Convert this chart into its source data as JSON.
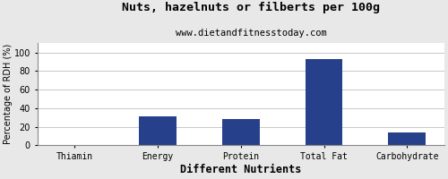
{
  "title": "Nuts, hazelnuts or filberts per 100g",
  "subtitle": "www.dietandfitnesstoday.com",
  "xlabel": "Different Nutrients",
  "ylabel": "Percentage of RDH (%)",
  "categories": [
    "Thiamin",
    "Energy",
    "Protein",
    "Total Fat",
    "Carbohydrate"
  ],
  "values": [
    0.5,
    31,
    28,
    93,
    14
  ],
  "bar_color": "#27408B",
  "ylim": [
    0,
    110
  ],
  "yticks": [
    0,
    20,
    40,
    60,
    80,
    100
  ],
  "background_color": "#e8e8e8",
  "plot_bg_color": "#ffffff",
  "grid_color": "#c8c8c8",
  "title_fontsize": 9.5,
  "subtitle_fontsize": 7.5,
  "xlabel_fontsize": 8.5,
  "ylabel_fontsize": 7,
  "tick_fontsize": 7,
  "bar_width": 0.45
}
